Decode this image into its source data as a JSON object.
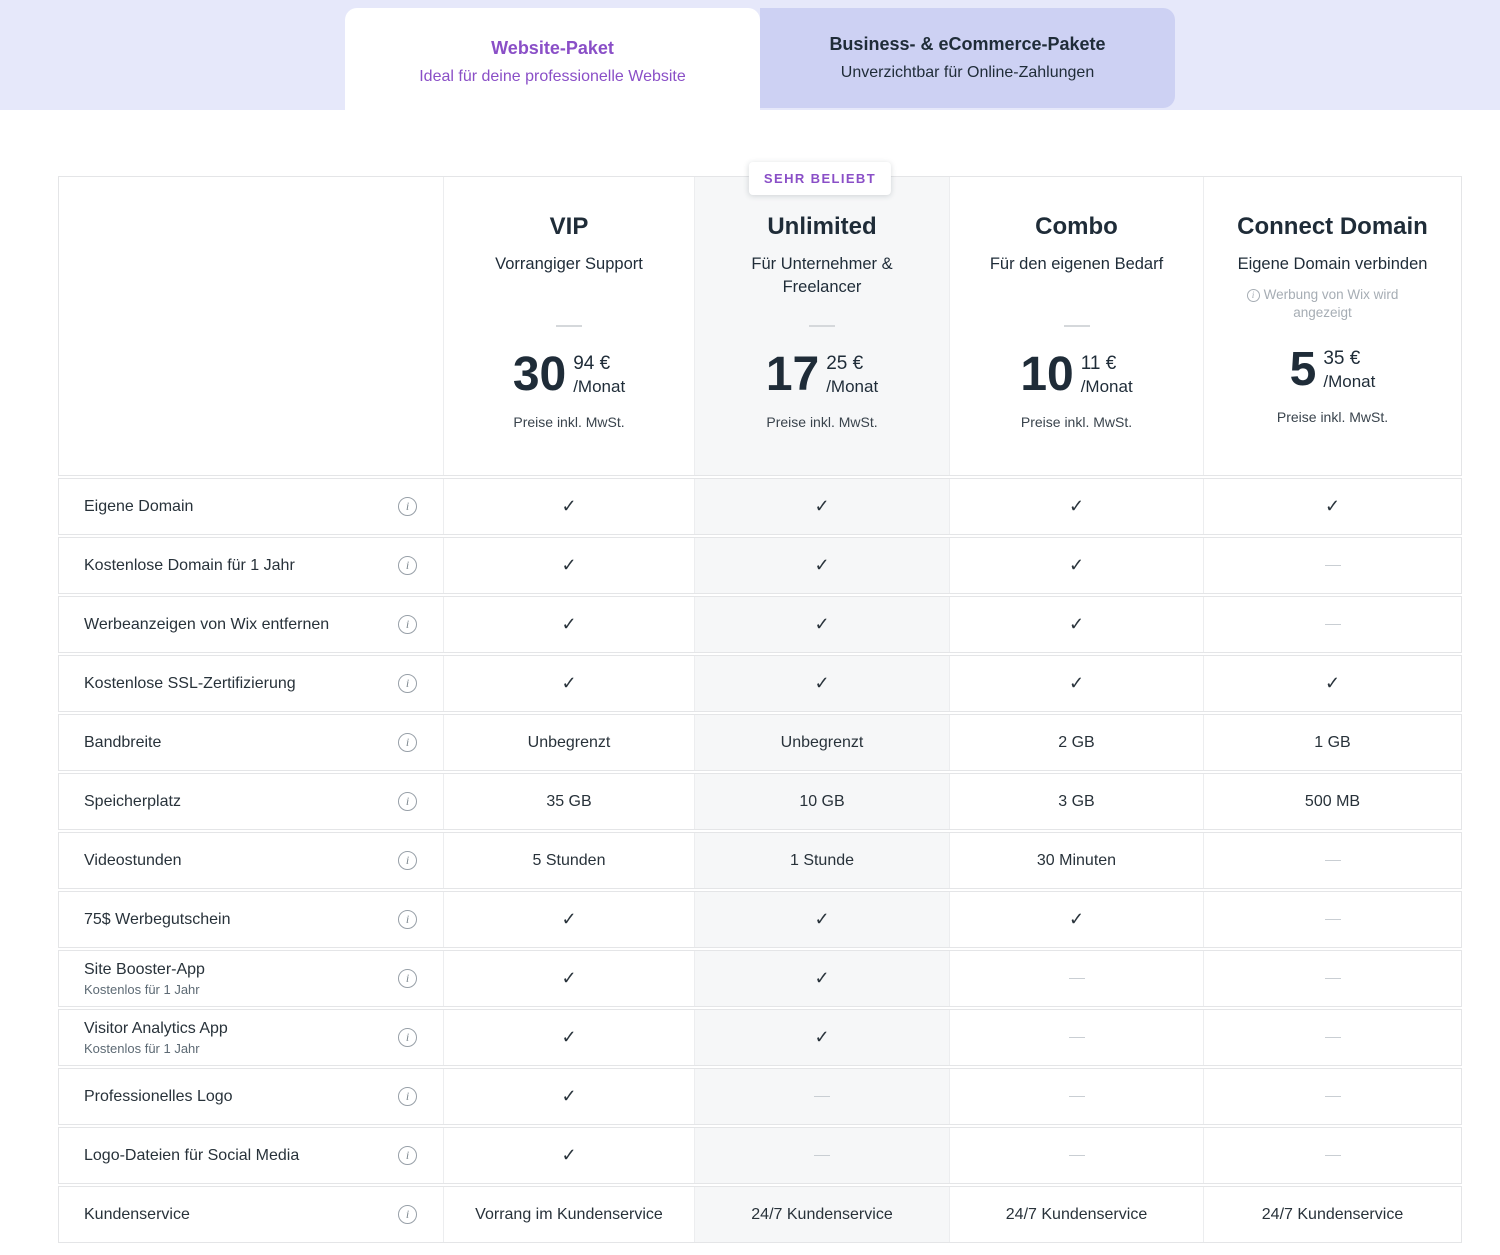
{
  "colors": {
    "accent": "#8A4FC7",
    "band": "#E6E8FA",
    "tab-inactive": "#CDD1F3",
    "dark": "#1F2C38",
    "hl": "#F6F7F8"
  },
  "tabs": [
    {
      "title": "Website-Paket",
      "subtitle": "Ideal für deine professionelle Website",
      "active": true
    },
    {
      "title": "Business- & eCommerce-Pakete",
      "subtitle": "Unverzichtbar für Online-Zahlungen",
      "active": false
    }
  ],
  "badge": "SEHR BELIEBT",
  "plans": [
    {
      "name": "VIP",
      "subtitle": "Vorrangiger Support",
      "price_int": "30",
      "price_cents": "94 €",
      "per": "/Monat",
      "vat": "Preise inkl. MwSt.",
      "divider": true,
      "highlight": false
    },
    {
      "name": "Unlimited",
      "subtitle": "Für Unternehmer & Freelancer",
      "price_int": "17",
      "price_cents": "25 €",
      "per": "/Monat",
      "vat": "Preise inkl. MwSt.",
      "divider": true,
      "highlight": true
    },
    {
      "name": "Combo",
      "subtitle": "Für den eigenen Bedarf",
      "price_int": "10",
      "price_cents": "11 €",
      "per": "/Monat",
      "vat": "Preise inkl. MwSt.",
      "divider": true,
      "highlight": false
    },
    {
      "name": "Connect Domain",
      "subtitle": "Eigene Domain verbinden",
      "note": "Werbung von Wix wird angezeigt",
      "price_int": "5",
      "price_cents": "35 €",
      "per": "/Monat",
      "vat": "Preise inkl. MwSt.",
      "divider": false,
      "highlight": false
    }
  ],
  "features": [
    {
      "label": "Eigene Domain",
      "values": [
        "check",
        "check",
        "check",
        "check"
      ]
    },
    {
      "label": "Kostenlose Domain für 1 Jahr",
      "values": [
        "check",
        "check",
        "check",
        "dash"
      ]
    },
    {
      "label": "Werbeanzeigen von Wix entfernen",
      "values": [
        "check",
        "check",
        "check",
        "dash"
      ]
    },
    {
      "label": "Kostenlose SSL-Zertifizierung",
      "values": [
        "check",
        "check",
        "check",
        "check"
      ]
    },
    {
      "label": "Bandbreite",
      "values": [
        "Unbegrenzt",
        "Unbegrenzt",
        "2 GB",
        "1 GB"
      ]
    },
    {
      "label": "Speicherplatz",
      "values": [
        "35 GB",
        "10 GB",
        "3 GB",
        "500 MB"
      ]
    },
    {
      "label": "Videostunden",
      "values": [
        "5 Stunden",
        "1 Stunde",
        "30 Minuten",
        "dash"
      ]
    },
    {
      "label": "75$ Werbegutschein",
      "values": [
        "check",
        "check",
        "check",
        "dash"
      ]
    },
    {
      "label": "Site Booster-App",
      "sublabel": "Kostenlos für 1 Jahr",
      "values": [
        "check",
        "check",
        "dash",
        "dash"
      ]
    },
    {
      "label": "Visitor Analytics App",
      "sublabel": "Kostenlos für 1 Jahr",
      "values": [
        "check",
        "check",
        "dash",
        "dash"
      ]
    },
    {
      "label": "Professionelles Logo",
      "values": [
        "check",
        "dash",
        "dash",
        "dash"
      ]
    },
    {
      "label": "Logo-Dateien für Social Media",
      "values": [
        "check",
        "dash",
        "dash",
        "dash"
      ]
    },
    {
      "label": "Kundenservice",
      "values": [
        "Vorrang im Kundenservice",
        "24/7 Kundenservice",
        "24/7 Kundenservice",
        "24/7 Kundenservice"
      ]
    }
  ]
}
